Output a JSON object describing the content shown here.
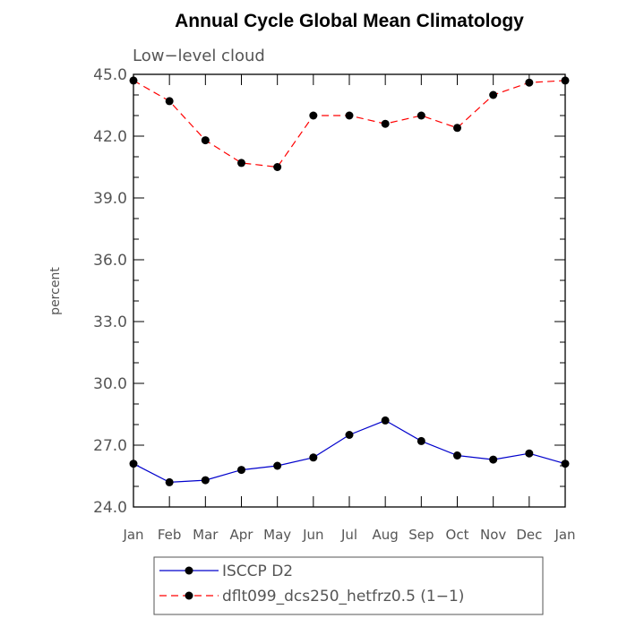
{
  "chart_data": {
    "type": "line",
    "title": "Annual Cycle Global Mean Climatology",
    "subtitle": "Low−level cloud",
    "ylabel": "percent",
    "xlabel": "",
    "categories": [
      "Jan",
      "Feb",
      "Mar",
      "Apr",
      "May",
      "Jun",
      "Jul",
      "Aug",
      "Sep",
      "Oct",
      "Nov",
      "Dec",
      "Jan"
    ],
    "ylim": [
      24.0,
      45.0
    ],
    "yticks": [
      "24.0",
      "27.0",
      "30.0",
      "33.0",
      "36.0",
      "39.0",
      "42.0",
      "45.0"
    ],
    "series": [
      {
        "name": "ISCCP D2",
        "color": "#0000cc",
        "dash": "solid",
        "marker": "filled-circle",
        "values": [
          26.1,
          25.2,
          25.3,
          25.8,
          26.0,
          26.4,
          27.5,
          28.2,
          27.2,
          26.5,
          26.3,
          26.6,
          26.1
        ]
      },
      {
        "name": "dflt099_dcs250_hetfrz0.5 (1−1)",
        "color": "#ff0000",
        "dash": "dashed",
        "marker": "filled-circle",
        "values": [
          44.7,
          43.7,
          41.8,
          40.7,
          40.5,
          43.0,
          43.0,
          42.6,
          43.0,
          42.4,
          44.0,
          44.6,
          44.7
        ]
      }
    ],
    "legend_position": "bottom-left, below plot"
  }
}
